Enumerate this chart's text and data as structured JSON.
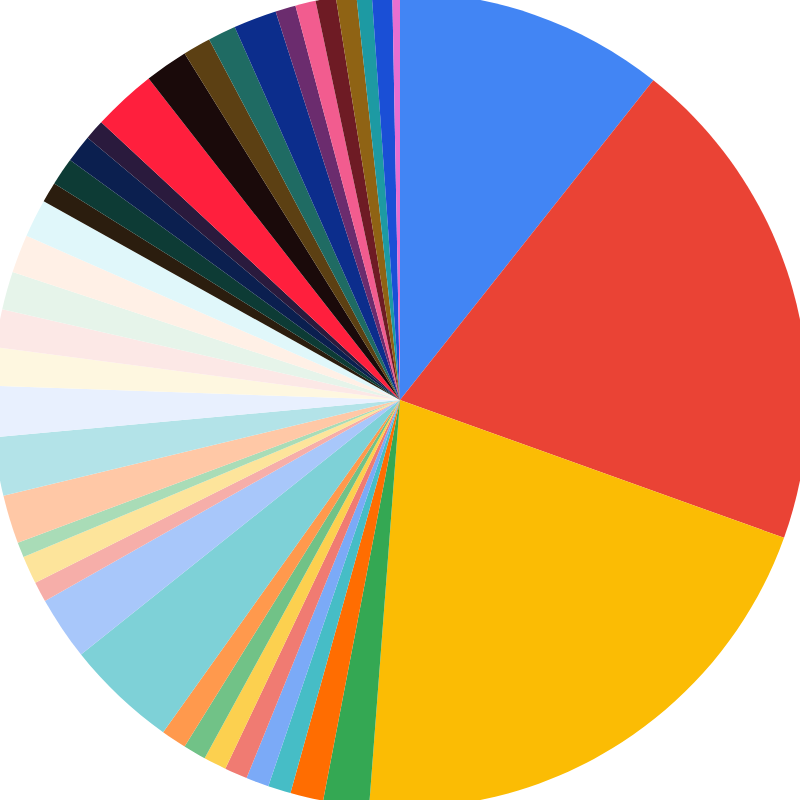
{
  "chart_data": {
    "type": "pie",
    "categories": [
      null,
      null,
      null,
      null,
      null,
      null,
      null,
      null,
      null,
      null,
      null,
      null,
      null,
      null,
      null,
      null,
      null,
      null,
      null,
      null,
      null,
      null,
      null,
      null,
      null,
      null,
      null,
      null,
      null,
      null,
      null,
      null,
      null,
      null,
      null,
      null,
      null,
      null,
      null,
      null
    ],
    "values": [
      10.6,
      19.7,
      20.6,
      1.8,
      1.3,
      0.9,
      0.9,
      0.9,
      0.9,
      0.9,
      1.0,
      4.4,
      2.5,
      0.8,
      1.1,
      0.6,
      1.9,
      2.3,
      2.0,
      1.5,
      1.5,
      1.5,
      1.5,
      1.5,
      0.8,
      1.1,
      1.1,
      0.8,
      2.5,
      1.7,
      1.1,
      1.1,
      1.7,
      0.8,
      0.8,
      0.8,
      0.8,
      0.6,
      0.8,
      0.3
    ],
    "colors": [
      "#4285f4",
      "#ea4335",
      "#fbbc04",
      "#34a853",
      "#ff6d01",
      "#46bdc6",
      "#7baaf7",
      "#f07b72",
      "#fcd04f",
      "#71c287",
      "#ff994d",
      "#7ed1d7",
      "#a8c7fa",
      "#f6aea9",
      "#fde49b",
      "#a9dcb7",
      "#ffc8a6",
      "#b3e3e8",
      "#e8f0fe",
      "#fef7e0",
      "#fce8e6",
      "#e6f4ea",
      "#fff0e6",
      "#e0f7fa",
      "#2b1d0e",
      "#0d3b35",
      "#0b1f4f",
      "#2a1a3d",
      "#ff1f3d",
      "#1a0a0a",
      "#5c4013",
      "#1f6b63",
      "#0c2d8c",
      "#6b2c6e",
      "#f25c8f",
      "#6e1b24",
      "#8f6314",
      "#1d9aa3",
      "#1a4fd6",
      "#e86fd0"
    ]
  }
}
